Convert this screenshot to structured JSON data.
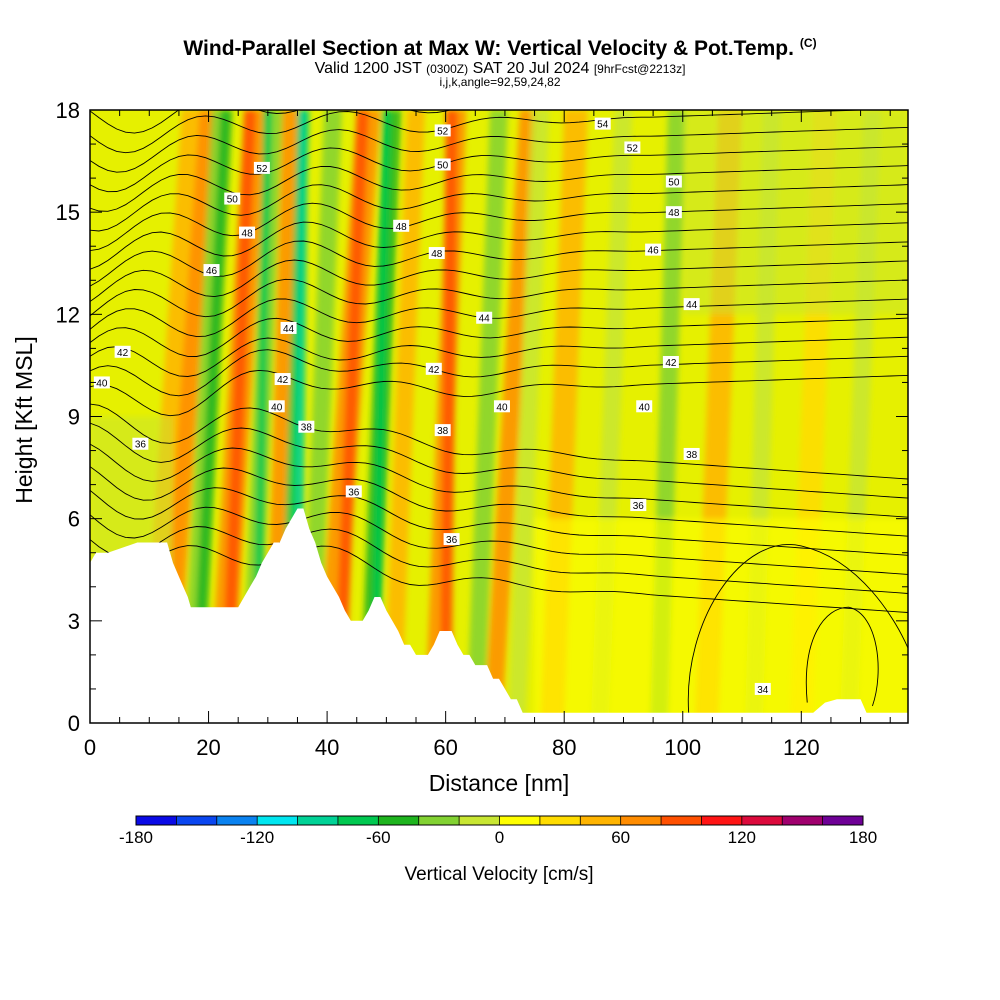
{
  "title": {
    "main": "Wind-Parallel Section at Max W: Vertical Velocity & Pot.Temp.",
    "tag": "(C)",
    "sub_a": "Valid 1200 JST",
    "sub_b": "(0300Z)",
    "sub_c": "SAT 20 Jul 2024",
    "sub_d": "[9hrFcst@2213z]",
    "sub3": "i,j,k,angle=92,59,24,82"
  },
  "chart_data": {
    "type": "heatmap",
    "xlabel": "Distance [nm]",
    "ylabel": "Height [Kft MSL]",
    "xlim": [
      0,
      138
    ],
    "ylim": [
      0,
      18
    ],
    "xticks": [
      0,
      20,
      40,
      60,
      80,
      100,
      120
    ],
    "yticks": [
      0,
      3,
      6,
      9,
      12,
      15,
      18
    ],
    "colorbar": {
      "label": "Vertical Velocity [cm/s]",
      "min": -180,
      "max": 180,
      "step": 20,
      "ticks": [
        -180,
        -120,
        -60,
        0,
        60,
        120,
        180
      ],
      "colors": [
        "#0a0ae6",
        "#0a46f0",
        "#0a82f0",
        "#00e6f0",
        "#00d296",
        "#00c850",
        "#1eb41e",
        "#82d232",
        "#c8e632",
        "#ffff00",
        "#ffdc00",
        "#ffb400",
        "#ff8c00",
        "#ff5000",
        "#ff1414",
        "#dc0a3c",
        "#a0006e",
        "#6e0096"
      ]
    },
    "contour_labels": {
      "theta_levels": [
        34,
        36,
        38,
        40,
        42,
        44,
        46,
        48,
        50,
        52,
        54
      ],
      "labels": [
        {
          "text": "54",
          "x": 86.5,
          "y": 17.6
        },
        {
          "text": "52",
          "x": 59.5,
          "y": 17.4
        },
        {
          "text": "52",
          "x": 91.5,
          "y": 16.9
        },
        {
          "text": "52",
          "x": 29,
          "y": 16.3
        },
        {
          "text": "50",
          "x": 59.5,
          "y": 16.4
        },
        {
          "text": "50",
          "x": 98.5,
          "y": 15.9
        },
        {
          "text": "50",
          "x": 24,
          "y": 15.4
        },
        {
          "text": "48",
          "x": 98.5,
          "y": 15.0
        },
        {
          "text": "48",
          "x": 26.5,
          "y": 14.4
        },
        {
          "text": "48",
          "x": 52.5,
          "y": 14.6
        },
        {
          "text": "48",
          "x": 58.5,
          "y": 13.8
        },
        {
          "text": "46",
          "x": 95,
          "y": 13.9
        },
        {
          "text": "46",
          "x": 20.5,
          "y": 13.3
        },
        {
          "text": "44",
          "x": 101.5,
          "y": 12.3
        },
        {
          "text": "44",
          "x": 66.5,
          "y": 11.9
        },
        {
          "text": "44",
          "x": 33.5,
          "y": 11.6
        },
        {
          "text": "42",
          "x": 98,
          "y": 10.6
        },
        {
          "text": "42",
          "x": 5.5,
          "y": 10.9
        },
        {
          "text": "42",
          "x": 58,
          "y": 10.4
        },
        {
          "text": "42",
          "x": 32.5,
          "y": 10.1
        },
        {
          "text": "40",
          "x": 2,
          "y": 10.0
        },
        {
          "text": "40",
          "x": 31.5,
          "y": 9.3
        },
        {
          "text": "40",
          "x": 69.5,
          "y": 9.3
        },
        {
          "text": "40",
          "x": 93.5,
          "y": 9.3
        },
        {
          "text": "38",
          "x": 59.5,
          "y": 8.6
        },
        {
          "text": "38",
          "x": 36.5,
          "y": 8.7
        },
        {
          "text": "38",
          "x": 101.5,
          "y": 7.9
        },
        {
          "text": "36",
          "x": 8.5,
          "y": 8.2
        },
        {
          "text": "36",
          "x": 44.5,
          "y": 6.8
        },
        {
          "text": "36",
          "x": 92.5,
          "y": 6.4
        },
        {
          "text": "36",
          "x": 61,
          "y": 5.4
        },
        {
          "text": "34",
          "x": 113.5,
          "y": 1.0
        }
      ]
    },
    "terrain_profile": {
      "x": [
        0,
        1,
        3,
        8,
        13,
        14,
        15,
        16,
        16.5,
        17,
        18,
        25,
        26,
        27,
        28,
        29,
        30,
        31,
        32,
        33,
        34,
        35,
        36,
        36.5,
        37,
        38,
        39,
        40,
        41,
        42,
        43,
        44,
        46,
        47,
        48,
        49,
        50,
        51,
        52,
        53,
        54,
        55,
        56,
        57,
        58,
        59,
        60,
        61,
        62,
        63,
        64,
        65,
        66,
        67,
        68,
        69,
        70,
        71,
        72,
        73,
        74,
        75,
        120,
        122,
        124,
        126,
        128,
        130,
        131,
        132,
        138
      ],
      "y": [
        4.7,
        5.0,
        5.0,
        5.3,
        5.3,
        4.7,
        4.3,
        3.9,
        3.7,
        3.4,
        3.4,
        3.4,
        3.7,
        4.0,
        4.3,
        4.7,
        5.0,
        5.3,
        5.3,
        5.7,
        6.0,
        6.3,
        6.3,
        6.0,
        5.7,
        5.3,
        4.7,
        4.3,
        4.0,
        3.7,
        3.3,
        3.0,
        3.0,
        3.3,
        3.7,
        3.7,
        3.3,
        3.0,
        2.7,
        2.3,
        2.3,
        2.0,
        2.0,
        2.0,
        2.3,
        2.7,
        2.7,
        2.7,
        2.3,
        2.0,
        2.0,
        1.7,
        1.7,
        1.7,
        1.3,
        1.3,
        1.0,
        0.7,
        0.7,
        0.3,
        0.3,
        0.3,
        0.3,
        0.3,
        0.6,
        0.7,
        0.7,
        0.7,
        0.3,
        0.3,
        0.3
      ]
    }
  }
}
